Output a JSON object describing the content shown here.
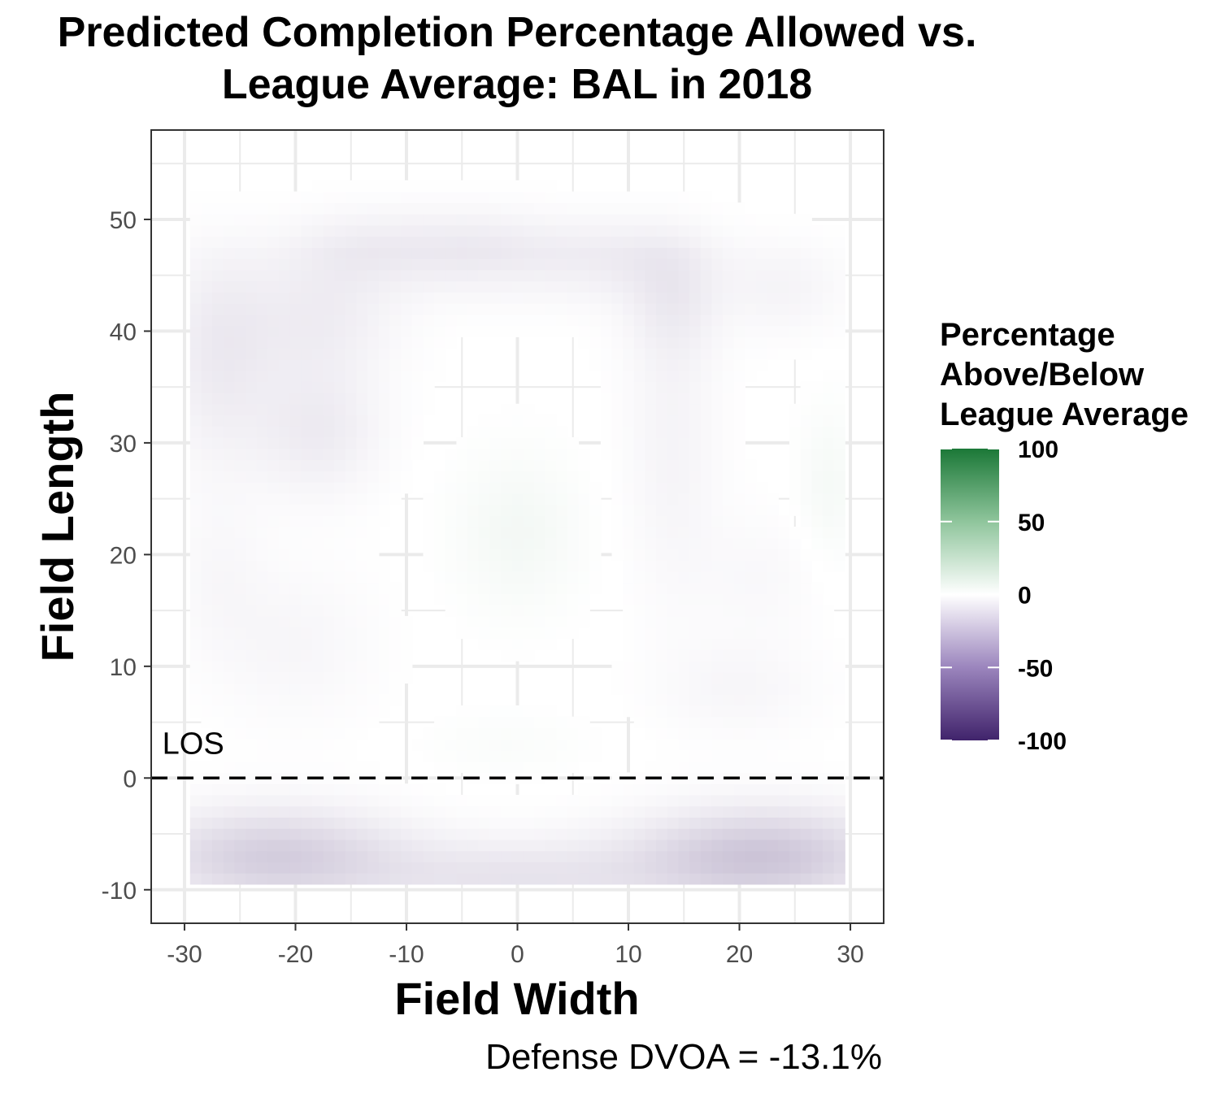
{
  "chart_data": {
    "type": "heatmap",
    "title_lines": [
      "Predicted Completion Percentage Allowed vs.",
      "League Average: BAL in 2018"
    ],
    "xlabel": "Field Width",
    "ylabel": "Field Length",
    "xlim": [
      -33,
      33
    ],
    "ylim": [
      -13,
      58
    ],
    "x_ticks": [
      -30,
      -20,
      -10,
      0,
      10,
      20,
      30
    ],
    "x_tick_labels": [
      "-30",
      "-20",
      "-10",
      "0",
      "10",
      "20",
      "30"
    ],
    "y_ticks": [
      -10,
      0,
      10,
      20,
      30,
      40,
      50
    ],
    "y_tick_labels": [
      "-10",
      "0",
      "10",
      "20",
      "30",
      "40",
      "50"
    ],
    "grid": true,
    "heat_extent": {
      "x": [
        -29.5,
        29.5
      ],
      "y": [
        -9.5,
        55
      ]
    },
    "blobs": [
      {
        "x": -27,
        "y": 38,
        "sx": 3.5,
        "sy": 7,
        "value": -9
      },
      {
        "x": -18,
        "y": 41,
        "sx": 5,
        "sy": 4,
        "value": -8
      },
      {
        "x": -18,
        "y": 31,
        "sx": 4,
        "sy": 4,
        "value": -9
      },
      {
        "x": -14,
        "y": 48,
        "sx": 5,
        "sy": 3,
        "value": -8
      },
      {
        "x": -4,
        "y": 48,
        "sx": 5,
        "sy": 3,
        "value": -9
      },
      {
        "x": 8,
        "y": 47,
        "sx": 6,
        "sy": 3,
        "value": -8
      },
      {
        "x": 14,
        "y": 43,
        "sx": 3,
        "sy": 4,
        "value": -7
      },
      {
        "x": 24,
        "y": 44,
        "sx": 4,
        "sy": 3,
        "value": -5
      },
      {
        "x": 14,
        "y": 30,
        "sx": 3,
        "sy": 10,
        "value": -5
      },
      {
        "x": 22,
        "y": 18,
        "sx": 4,
        "sy": 4,
        "value": -3
      },
      {
        "x": 20,
        "y": 8,
        "sx": 5,
        "sy": 3,
        "value": -4
      },
      {
        "x": -20,
        "y": 12,
        "sx": 5,
        "sy": 5,
        "value": -4
      },
      {
        "x": -27,
        "y": 18,
        "sx": 3,
        "sy": 5,
        "value": -3
      },
      {
        "x": 0,
        "y": 22,
        "sx": 4,
        "sy": 5,
        "value": 5
      },
      {
        "x": -1,
        "y": 3,
        "sx": 5,
        "sy": 2,
        "value": 2
      },
      {
        "x": 28,
        "y": 26,
        "sx": 2,
        "sy": 5,
        "value": 4
      },
      {
        "x": -22,
        "y": -7,
        "sx": 8,
        "sy": 3,
        "value": -22
      },
      {
        "x": 22,
        "y": -7,
        "sx": 8,
        "sy": 3,
        "value": -26
      },
      {
        "x": 0,
        "y": -9,
        "sx": 10,
        "sy": 2.5,
        "value": -12
      }
    ],
    "los": {
      "y": 0,
      "label": "LOS",
      "style": "dashed"
    },
    "legend": {
      "title_lines": [
        "Percentage",
        "Above/Below",
        "League Average"
      ],
      "labels": [
        "100",
        "50",
        "0",
        "-50",
        "-100"
      ],
      "values": [
        100,
        50,
        0,
        -50,
        -100
      ],
      "range": [
        -100,
        100
      ],
      "high_color": "#1b7837",
      "mid_color": "#ffffff",
      "low_color": "#40236b"
    },
    "caption": "Defense DVOA = -13.1%"
  }
}
